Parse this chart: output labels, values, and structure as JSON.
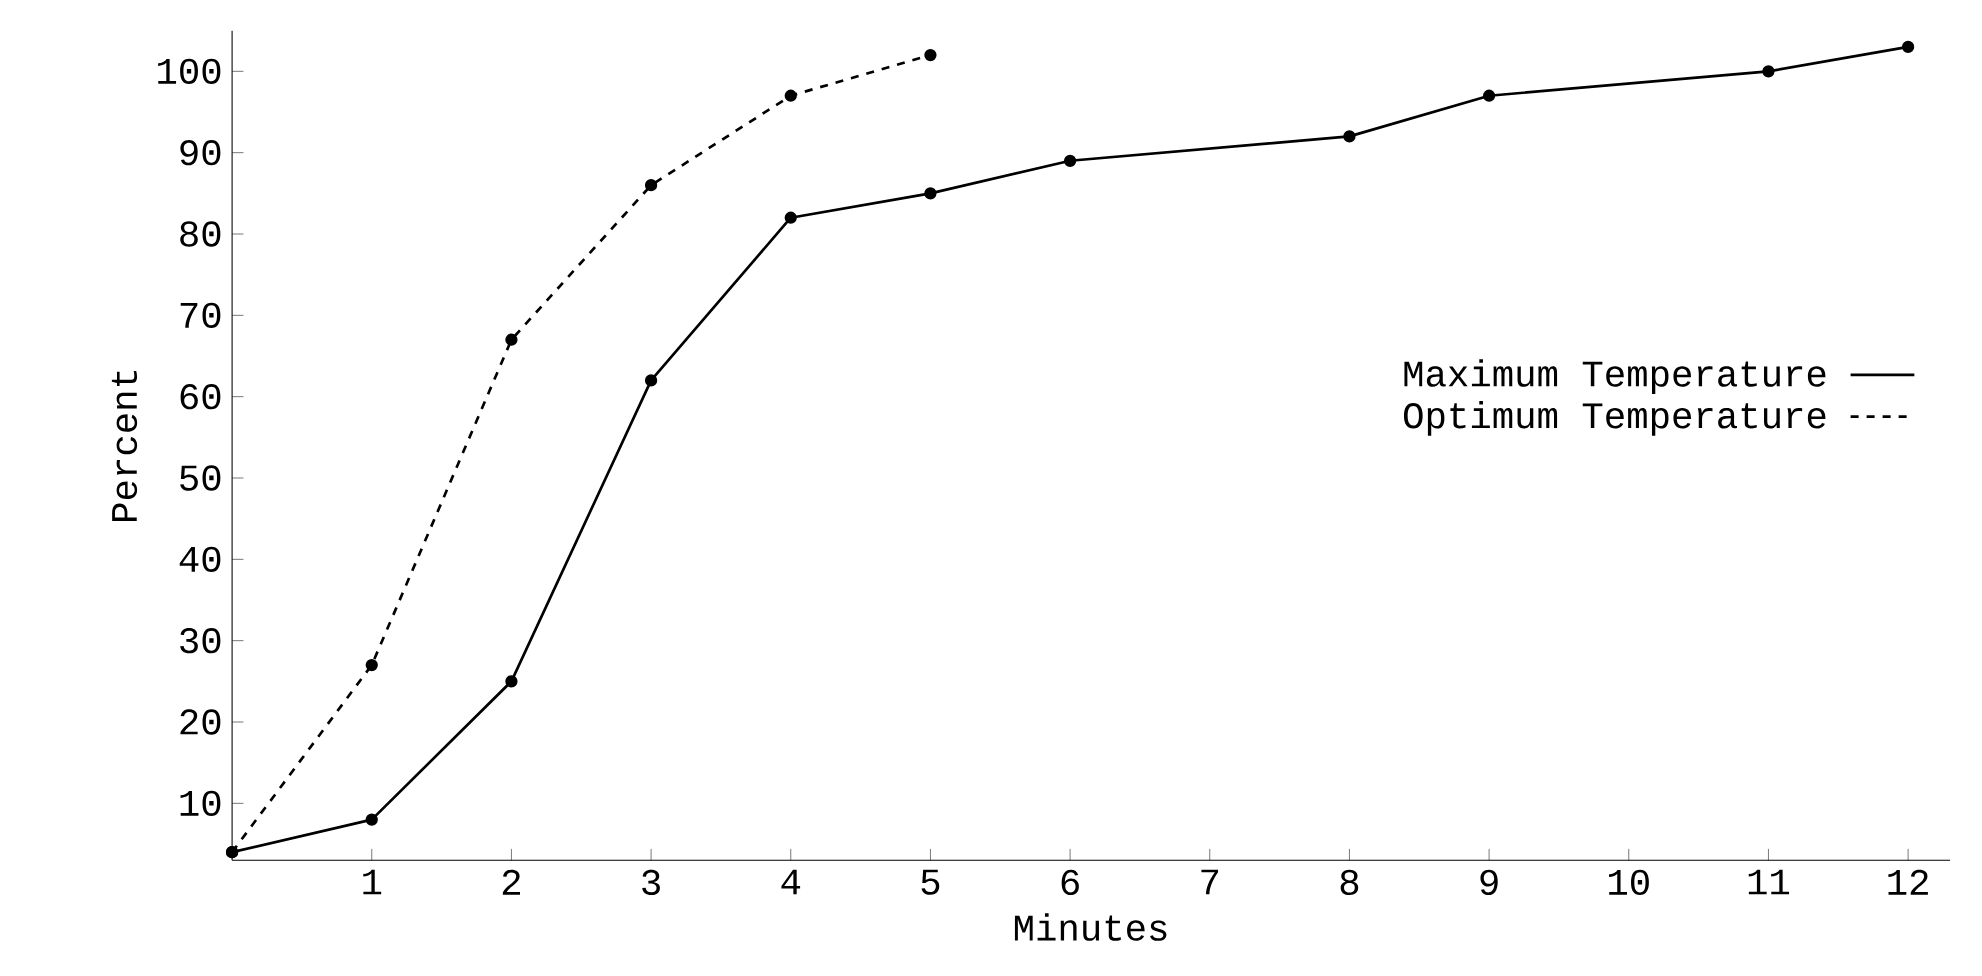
{
  "chart_data": {
    "type": "line",
    "xlabel": "Minutes",
    "ylabel": "Percent",
    "xlim": [
      0,
      12.3
    ],
    "ylim": [
      3,
      105
    ],
    "xticks": [
      1,
      2,
      3,
      4,
      5,
      6,
      7,
      8,
      9,
      10,
      11,
      12
    ],
    "yticks": [
      10,
      20,
      30,
      40,
      50,
      60,
      70,
      80,
      90,
      100
    ],
    "grid": false,
    "legend": "right",
    "marker": "circle",
    "series": [
      {
        "name": "Maximum Temperature",
        "color": "#000000",
        "line_style": "solid",
        "x": [
          0,
          1,
          2,
          3,
          4,
          5,
          6,
          8,
          9,
          11,
          12
        ],
        "values": [
          4,
          8,
          25,
          62,
          82,
          85,
          89,
          92,
          97,
          100,
          103
        ]
      },
      {
        "name": "Optimum Temperature",
        "color": "#000000",
        "line_style": "dashed",
        "x": [
          0,
          1,
          2,
          3,
          4,
          5
        ],
        "values": [
          4,
          27,
          67,
          86,
          97,
          102
        ]
      }
    ]
  }
}
